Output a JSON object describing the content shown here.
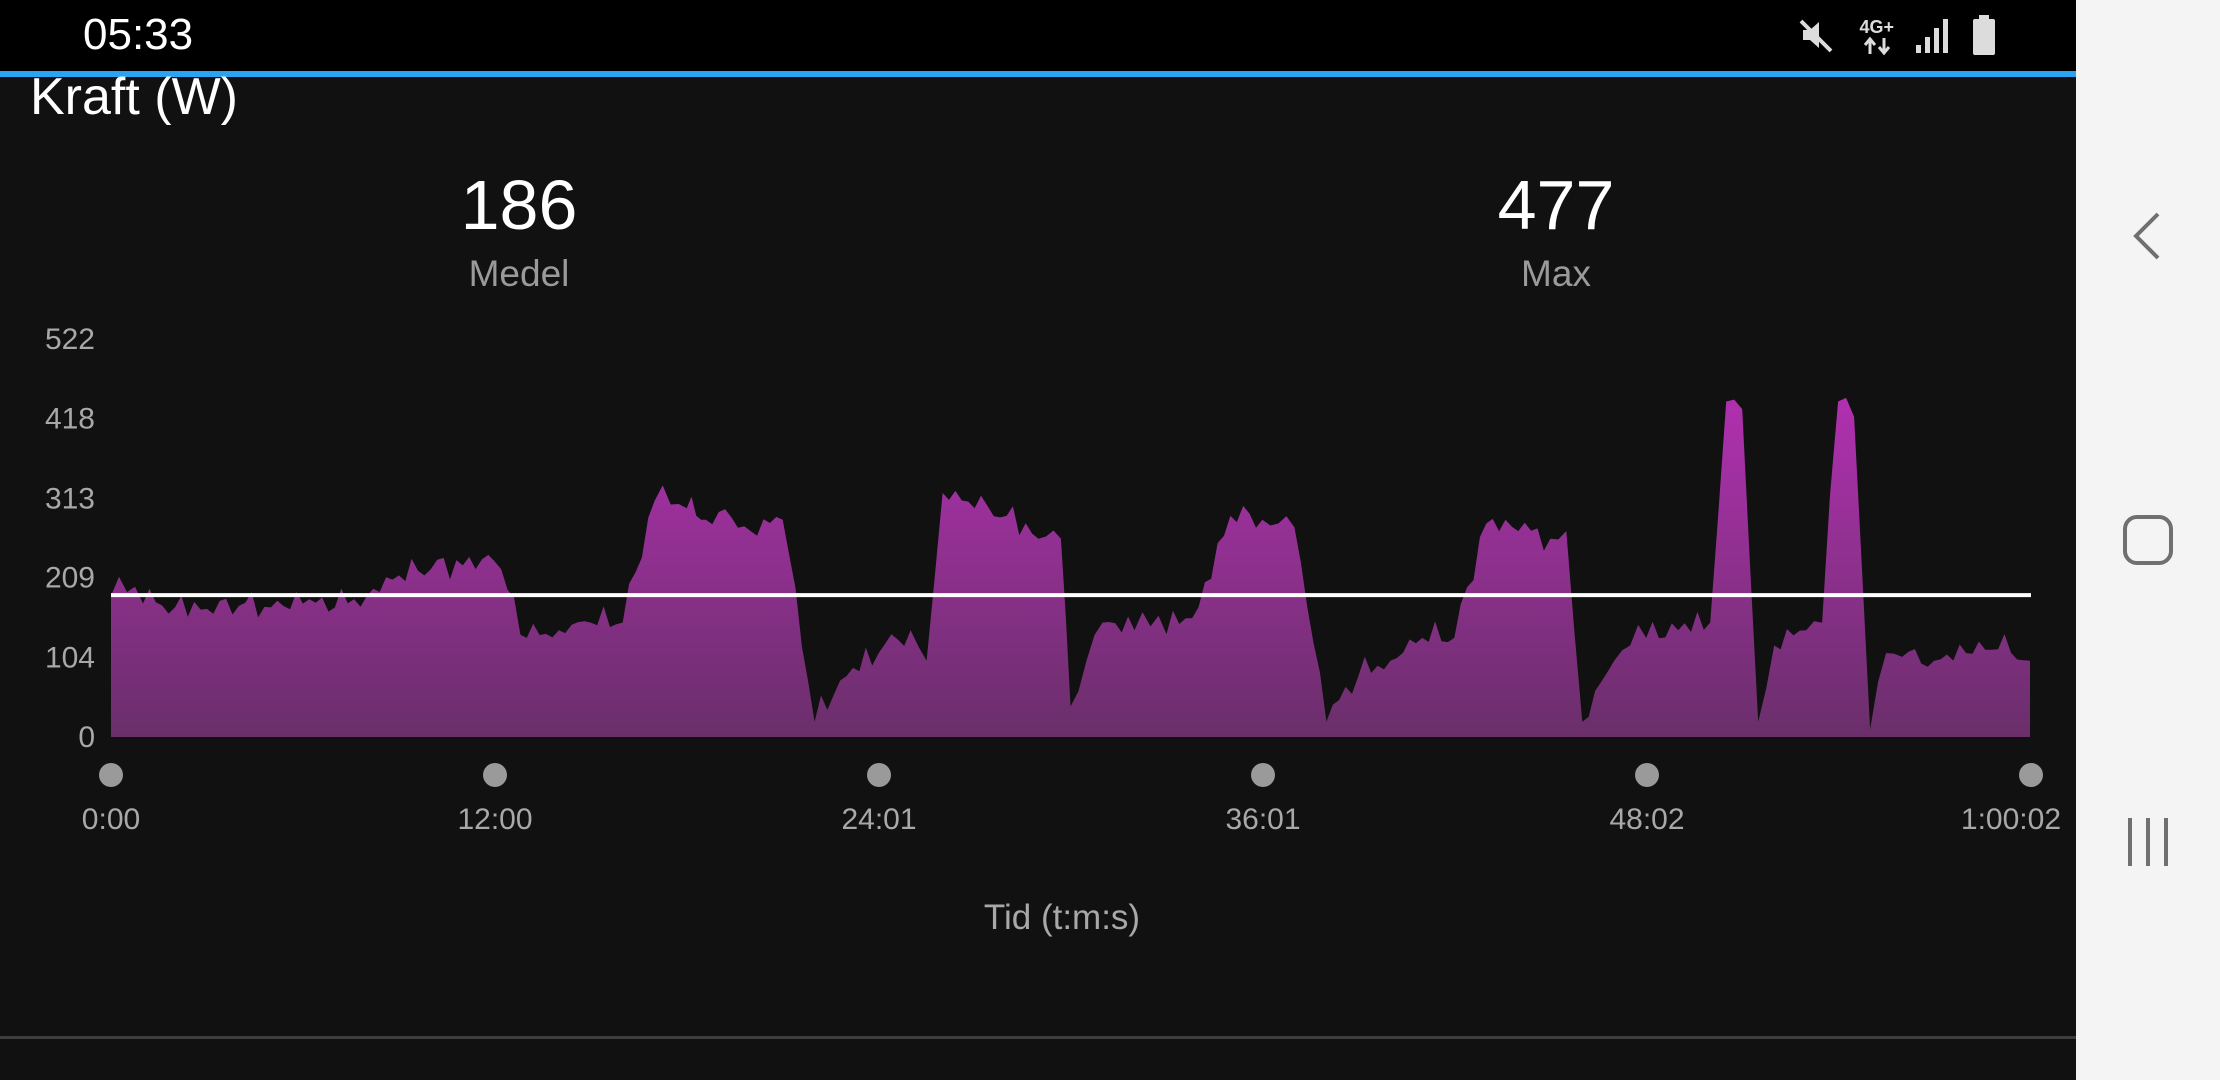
{
  "status_bar": {
    "time": "05:33",
    "network_label": "4G+",
    "icons": [
      "mute-icon",
      "network-4g-icon",
      "signal-icon",
      "battery-icon"
    ]
  },
  "header": {
    "title": "Kraft (W)"
  },
  "stats": {
    "average": {
      "value": "186",
      "label": "Medel"
    },
    "max": {
      "value": "477",
      "label": "Max"
    }
  },
  "colors": {
    "accent": "#2aa3f2",
    "area_top": "#b030b0",
    "area_bottom": "#6a2f6a",
    "average_line": "#ffffff",
    "background": "#111111"
  },
  "chart_data": {
    "type": "area",
    "title": "Kraft (W)",
    "xlabel": "Tid (t:m:s)",
    "ylabel": "",
    "x_unit": "minutes",
    "xlim": [
      0,
      60.03
    ],
    "ylim": [
      0,
      522
    ],
    "y_ticks": [
      "0",
      "104",
      "209",
      "313",
      "418",
      "522"
    ],
    "x_ticks": [
      "0:00",
      "12:00",
      "24:01",
      "36:01",
      "48:02",
      "1:00:02"
    ],
    "average_line": 186,
    "grid": false,
    "series": [
      {
        "x": [
          0,
          0.5,
          1,
          2,
          3,
          4,
          5,
          6,
          7,
          8,
          9,
          10,
          11,
          12,
          13,
          14,
          15,
          16,
          17,
          17.5,
          18,
          18.3,
          18.6,
          19,
          20,
          21,
          22,
          23,
          24,
          25,
          25.5,
          26,
          27,
          28,
          29,
          29.7,
          30,
          30.5,
          31,
          32,
          32.5,
          33,
          34,
          35,
          36,
          36.5,
          37,
          38,
          39,
          40,
          41,
          42,
          43,
          44,
          45,
          45.5,
          46,
          47,
          47.5,
          48,
          49,
          50,
          50.5,
          51,
          51.5,
          52,
          53,
          53.5,
          54,
          54.5,
          55,
          55.5,
          56,
          57,
          58,
          59,
          60
        ],
        "y": [
          185,
          190,
          175,
          170,
          168,
          172,
          170,
          175,
          170,
          185,
          212,
          220,
          225,
          230,
          130,
          140,
          150,
          150,
          310,
          305,
          300,
          290,
          285,
          295,
          270,
          285,
          20,
          80,
          110,
          140,
          100,
          320,
          300,
          290,
          260,
          260,
          40,
          100,
          150,
          140,
          145,
          135,
          170,
          290,
          285,
          280,
          275,
          20,
          80,
          100,
          130,
          130,
          280,
          270,
          260,
          270,
          20,
          100,
          120,
          130,
          140,
          150,
          440,
          430,
          20,
          120,
          140,
          150,
          440,
          420,
          10,
          110,
          105,
          100,
          110,
          115,
          100
        ]
      }
    ]
  }
}
